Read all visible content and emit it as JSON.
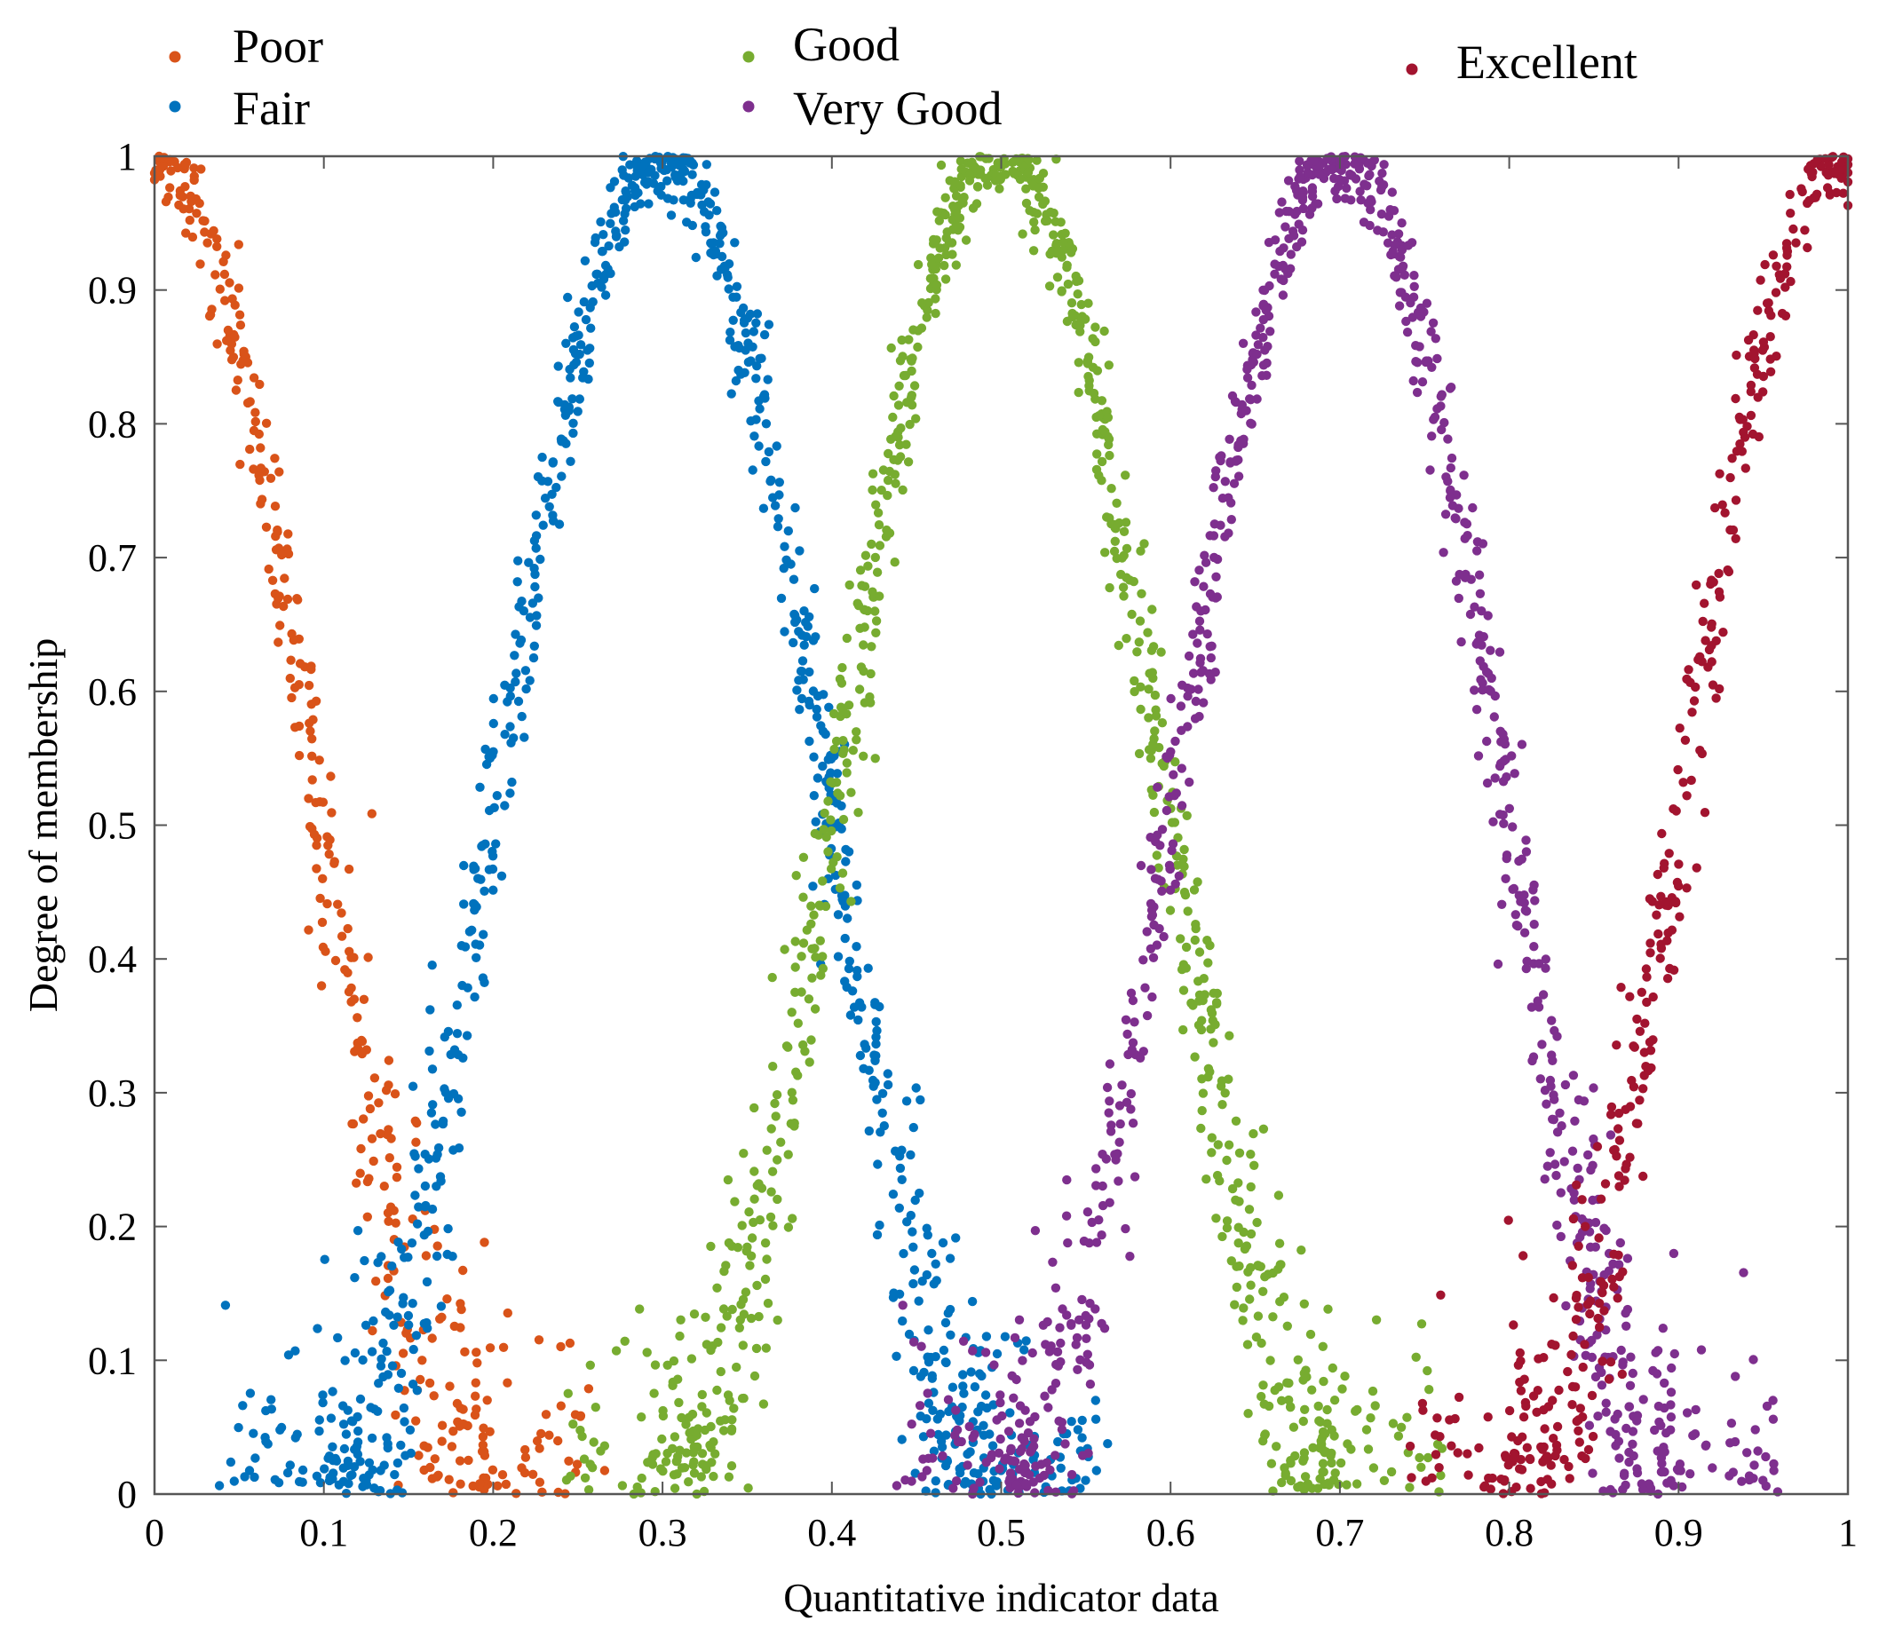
{
  "chart_data": {
    "type": "scatter",
    "title": "",
    "xlabel": "Quantitative indicator data",
    "ylabel": "Degree of membership",
    "xlim": [
      0,
      1
    ],
    "ylim": [
      0,
      1
    ],
    "x_ticks": [
      0,
      0.1,
      0.2,
      0.3,
      0.4,
      0.5,
      0.6,
      0.7,
      0.8,
      0.9,
      1
    ],
    "y_ticks": [
      0,
      0.1,
      0.2,
      0.3,
      0.4,
      0.5,
      0.6,
      0.7,
      0.8,
      0.9,
      1
    ],
    "x_tick_labels": [
      "0",
      "0.1",
      "0.2",
      "0.3",
      "0.4",
      "0.5",
      "0.6",
      "0.7",
      "0.8",
      "0.9",
      "1"
    ],
    "y_tick_labels": [
      "0",
      "0.1",
      "0.2",
      "0.3",
      "0.4",
      "0.5",
      "0.6",
      "0.7",
      "0.8",
      "0.9",
      "1"
    ],
    "grid": false,
    "legend_position": "top",
    "series": [
      {
        "name": "Poor",
        "color": "#D95319",
        "center": 0.0,
        "width": 0.2,
        "peak": 1.0,
        "points_per_series": 900
      },
      {
        "name": "Fair",
        "color": "#0072BD",
        "center": 0.3,
        "width": 0.2,
        "peak": 1.0,
        "points_per_series": 1100
      },
      {
        "name": "Good",
        "color": "#77AC30",
        "center": 0.5,
        "width": 0.2,
        "peak": 1.0,
        "points_per_series": 1100
      },
      {
        "name": "Very Good",
        "color": "#7E2F8E",
        "center": 0.7,
        "width": 0.2,
        "peak": 1.0,
        "points_per_series": 1100
      },
      {
        "name": "Excellent",
        "color": "#A2142F",
        "center": 1.0,
        "width": 0.2,
        "peak": 1.0,
        "points_per_series": 900
      }
    ]
  }
}
